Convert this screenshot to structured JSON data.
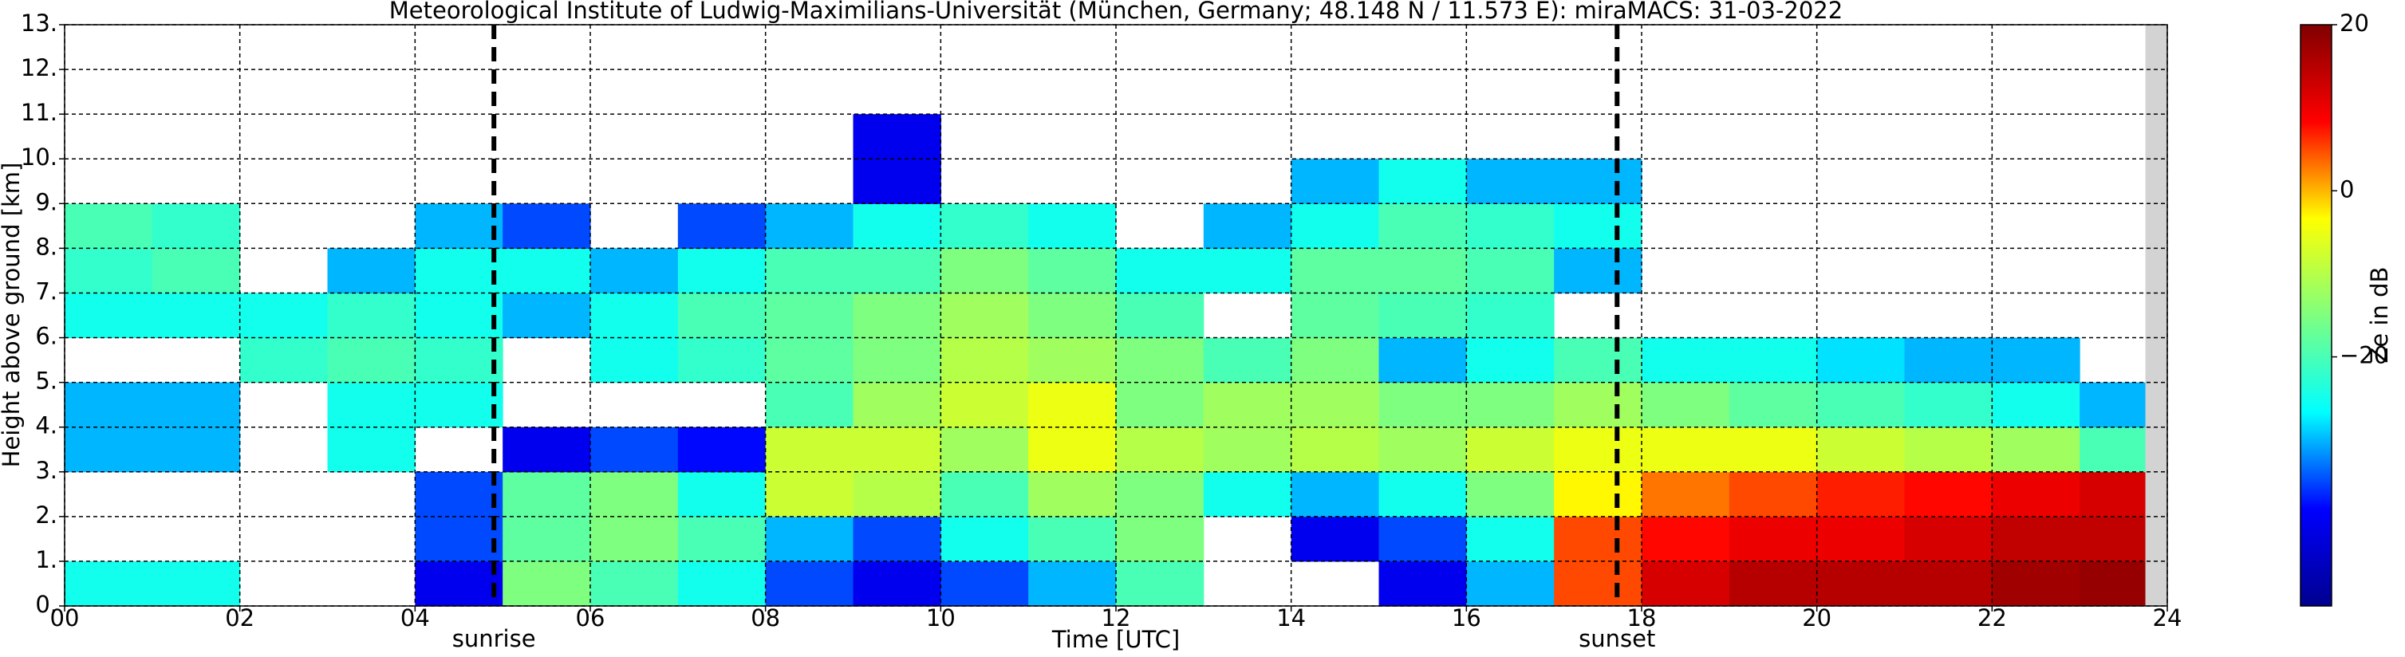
{
  "chart_data": {
    "type": "heatmap",
    "title": "Meteorological Institute of Ludwig-Maximilians-Universität (München, Germany; 48.148 N / 11.573 E):    miraMACS: 31-03-2022",
    "x_label": "Time [UTC]",
    "y_label": "Height above ground [km]",
    "colorbar_label": "Ze in dB",
    "xlim": [
      0,
      24
    ],
    "ylim": [
      0,
      13
    ],
    "xticks": [
      {
        "value": 0,
        "label": "00"
      },
      {
        "value": 2,
        "label": "02"
      },
      {
        "value": 4,
        "label": "04"
      },
      {
        "value": 6,
        "label": "06"
      },
      {
        "value": 8,
        "label": "08"
      },
      10,
      12,
      14,
      16,
      18,
      20,
      22,
      24
    ],
    "yticks": [
      {
        "value": 0,
        "label": "0."
      },
      {
        "value": 1,
        "label": "1."
      },
      {
        "value": 2,
        "label": "2."
      },
      {
        "value": 3,
        "label": "3."
      },
      {
        "value": 4,
        "label": "4."
      },
      {
        "value": 5,
        "label": "5."
      },
      {
        "value": 6,
        "label": "6."
      },
      {
        "value": 7,
        "label": "7."
      },
      {
        "value": 8,
        "label": "8."
      },
      {
        "value": 9,
        "label": "9."
      },
      {
        "value": 10,
        "label": "10."
      },
      {
        "value": 11,
        "label": "11."
      },
      {
        "value": 12,
        "label": "12."
      },
      {
        "value": 13,
        "label": "13."
      }
    ],
    "grid": true,
    "clim": [
      -50,
      20
    ],
    "cticks": [
      20,
      0,
      {
        "value": -20,
        "label": "−20"
      }
    ],
    "colormap": [
      "#00008f",
      "#0000ff",
      "#00ffff",
      "#7fff7f",
      "#ffff00",
      "#ff0000",
      "#800000"
    ],
    "missing_xlim": [
      23.75,
      24
    ],
    "missing_color": "#d3d3d3",
    "x_bins": [
      0,
      1,
      2,
      3,
      4,
      5,
      6,
      7,
      8,
      9,
      10,
      11,
      12,
      13,
      14,
      15,
      16,
      17,
      18,
      19,
      20,
      21,
      22,
      23,
      24
    ],
    "y_bins": [
      0,
      1,
      2,
      3,
      4,
      5,
      6,
      7,
      8,
      9,
      10,
      11,
      12,
      13
    ],
    "z": [
      [
        -25,
        -25,
        null,
        null,
        -40,
        -15,
        -20,
        -25,
        -35,
        -40,
        -35,
        -30,
        -20,
        null,
        null,
        -40,
        -30,
        5,
        12,
        15,
        15,
        15,
        17,
        18
      ],
      [
        null,
        null,
        null,
        null,
        -35,
        -18,
        -15,
        -20,
        -30,
        -35,
        -25,
        -20,
        -15,
        null,
        -40,
        -35,
        -25,
        5,
        8,
        10,
        10,
        12,
        14,
        14
      ],
      [
        null,
        null,
        null,
        null,
        -35,
        -18,
        -15,
        -25,
        -8,
        -10,
        -20,
        -12,
        -15,
        -25,
        -30,
        -25,
        -15,
        -3,
        3,
        5,
        7,
        8,
        10,
        12
      ],
      [
        -30,
        -30,
        null,
        -25,
        null,
        -40,
        -35,
        -38,
        -8,
        -8,
        -12,
        -5,
        -10,
        -12,
        -10,
        -12,
        -8,
        -5,
        -5,
        -5,
        -8,
        -10,
        -12,
        -20
      ],
      [
        -30,
        -30,
        null,
        -25,
        -25,
        null,
        null,
        null,
        -20,
        -12,
        -8,
        -5,
        -15,
        -12,
        -12,
        -15,
        -15,
        -12,
        -15,
        -18,
        -20,
        -22,
        -25,
        -30
      ],
      [
        null,
        null,
        -22,
        -20,
        -22,
        null,
        -25,
        -22,
        -18,
        -15,
        -10,
        -12,
        -15,
        -20,
        -15,
        -30,
        -25,
        -20,
        -25,
        -25,
        -28,
        -30,
        -30,
        null
      ],
      [
        -25,
        -25,
        -25,
        -22,
        -25,
        -30,
        -25,
        -20,
        -18,
        -15,
        -12,
        -15,
        -20,
        null,
        -18,
        -20,
        -22,
        null,
        null,
        null,
        null,
        null,
        null,
        null
      ],
      [
        -22,
        -20,
        null,
        -30,
        -25,
        -25,
        -30,
        -25,
        -20,
        -20,
        -15,
        -18,
        -25,
        -25,
        -18,
        -18,
        -20,
        -30,
        null,
        null,
        null,
        null,
        null,
        null
      ],
      [
        -20,
        -22,
        null,
        null,
        -30,
        -35,
        null,
        -35,
        -30,
        -25,
        -22,
        -25,
        null,
        -30,
        -25,
        -20,
        -22,
        -25,
        null,
        null,
        null,
        null,
        null,
        null
      ],
      [
        null,
        null,
        null,
        null,
        null,
        null,
        null,
        null,
        null,
        -40,
        null,
        null,
        null,
        null,
        -30,
        -25,
        -30,
        -30,
        null,
        null,
        null,
        null,
        null,
        null
      ],
      [
        null,
        null,
        null,
        null,
        null,
        null,
        null,
        null,
        null,
        -40,
        null,
        null,
        null,
        null,
        null,
        null,
        null,
        null,
        null,
        null,
        null,
        null,
        null,
        null
      ],
      [
        null,
        null,
        null,
        null,
        null,
        null,
        null,
        null,
        null,
        null,
        null,
        null,
        null,
        null,
        null,
        null,
        null,
        null,
        null,
        null,
        null,
        null,
        null,
        null
      ],
      [
        null,
        null,
        null,
        null,
        null,
        null,
        null,
        null,
        null,
        null,
        null,
        null,
        null,
        null,
        null,
        null,
        null,
        null,
        null,
        null,
        null,
        null,
        null,
        null
      ]
    ],
    "events": [
      {
        "x": 4.9,
        "label": "sunrise"
      },
      {
        "x": 17.72,
        "label": "sunset"
      }
    ]
  }
}
